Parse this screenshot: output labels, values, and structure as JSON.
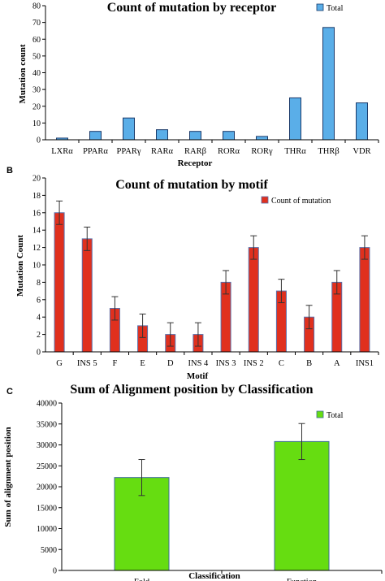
{
  "chart_data": [
    {
      "panel": "",
      "type": "bar",
      "title": "Count of mutation by receptor",
      "xlabel": "Receptor",
      "ylabel": "Mutation count",
      "categories": [
        "LXRα",
        "PPARα",
        "PPARγ",
        "RARα",
        "RARβ",
        "RORα",
        "RORγ",
        "THRα",
        "THRβ",
        "VDR"
      ],
      "series": [
        {
          "name": "Total",
          "values": [
            1,
            5,
            13,
            6,
            5,
            5,
            2,
            25,
            67,
            22
          ],
          "color": "#5aaee8"
        }
      ],
      "ylim": [
        0,
        80
      ],
      "yticks": [
        0,
        10,
        20,
        30,
        40,
        50,
        60,
        70,
        80
      ],
      "error_bars": false,
      "legend_position": "top-right",
      "grid": false
    },
    {
      "panel": "B",
      "type": "bar",
      "title": "Count of mutation by motif",
      "xlabel": "Motif",
      "ylabel": "Mutation Count",
      "categories": [
        "G",
        "INS 5",
        "F",
        "E",
        "D",
        "INS 4",
        "INS 3",
        "INS 2",
        "C",
        "B",
        "A",
        "INS1"
      ],
      "series": [
        {
          "name": "Count of mutation",
          "values": [
            16,
            13,
            5,
            3,
            2,
            2,
            8,
            12,
            7,
            4,
            8,
            12
          ],
          "color": "#e0301e"
        }
      ],
      "errors": [
        1.35,
        1.35,
        1.35,
        1.35,
        1.35,
        1.35,
        1.35,
        1.35,
        1.35,
        1.35,
        1.35,
        1.35
      ],
      "ylim": [
        0,
        20
      ],
      "yticks": [
        0,
        2,
        4,
        6,
        8,
        10,
        12,
        14,
        16,
        18,
        20
      ],
      "error_bars": true,
      "legend_position": "top-right",
      "grid": false
    },
    {
      "panel": "C",
      "type": "bar",
      "title": "Sum of Alignment position by Classification",
      "xlabel": "Classification",
      "ylabel": "Sum of alignment position",
      "categories": [
        "Fold",
        "Function"
      ],
      "series": [
        {
          "name": "Total",
          "values": [
            22200,
            30800
          ],
          "color": "#66dd11"
        }
      ],
      "errors": [
        4300,
        4300
      ],
      "ylim": [
        0,
        40000
      ],
      "yticks": [
        0,
        5000,
        10000,
        15000,
        20000,
        25000,
        30000,
        35000,
        40000
      ],
      "error_bars": true,
      "legend_position": "top-right",
      "grid": false
    }
  ]
}
